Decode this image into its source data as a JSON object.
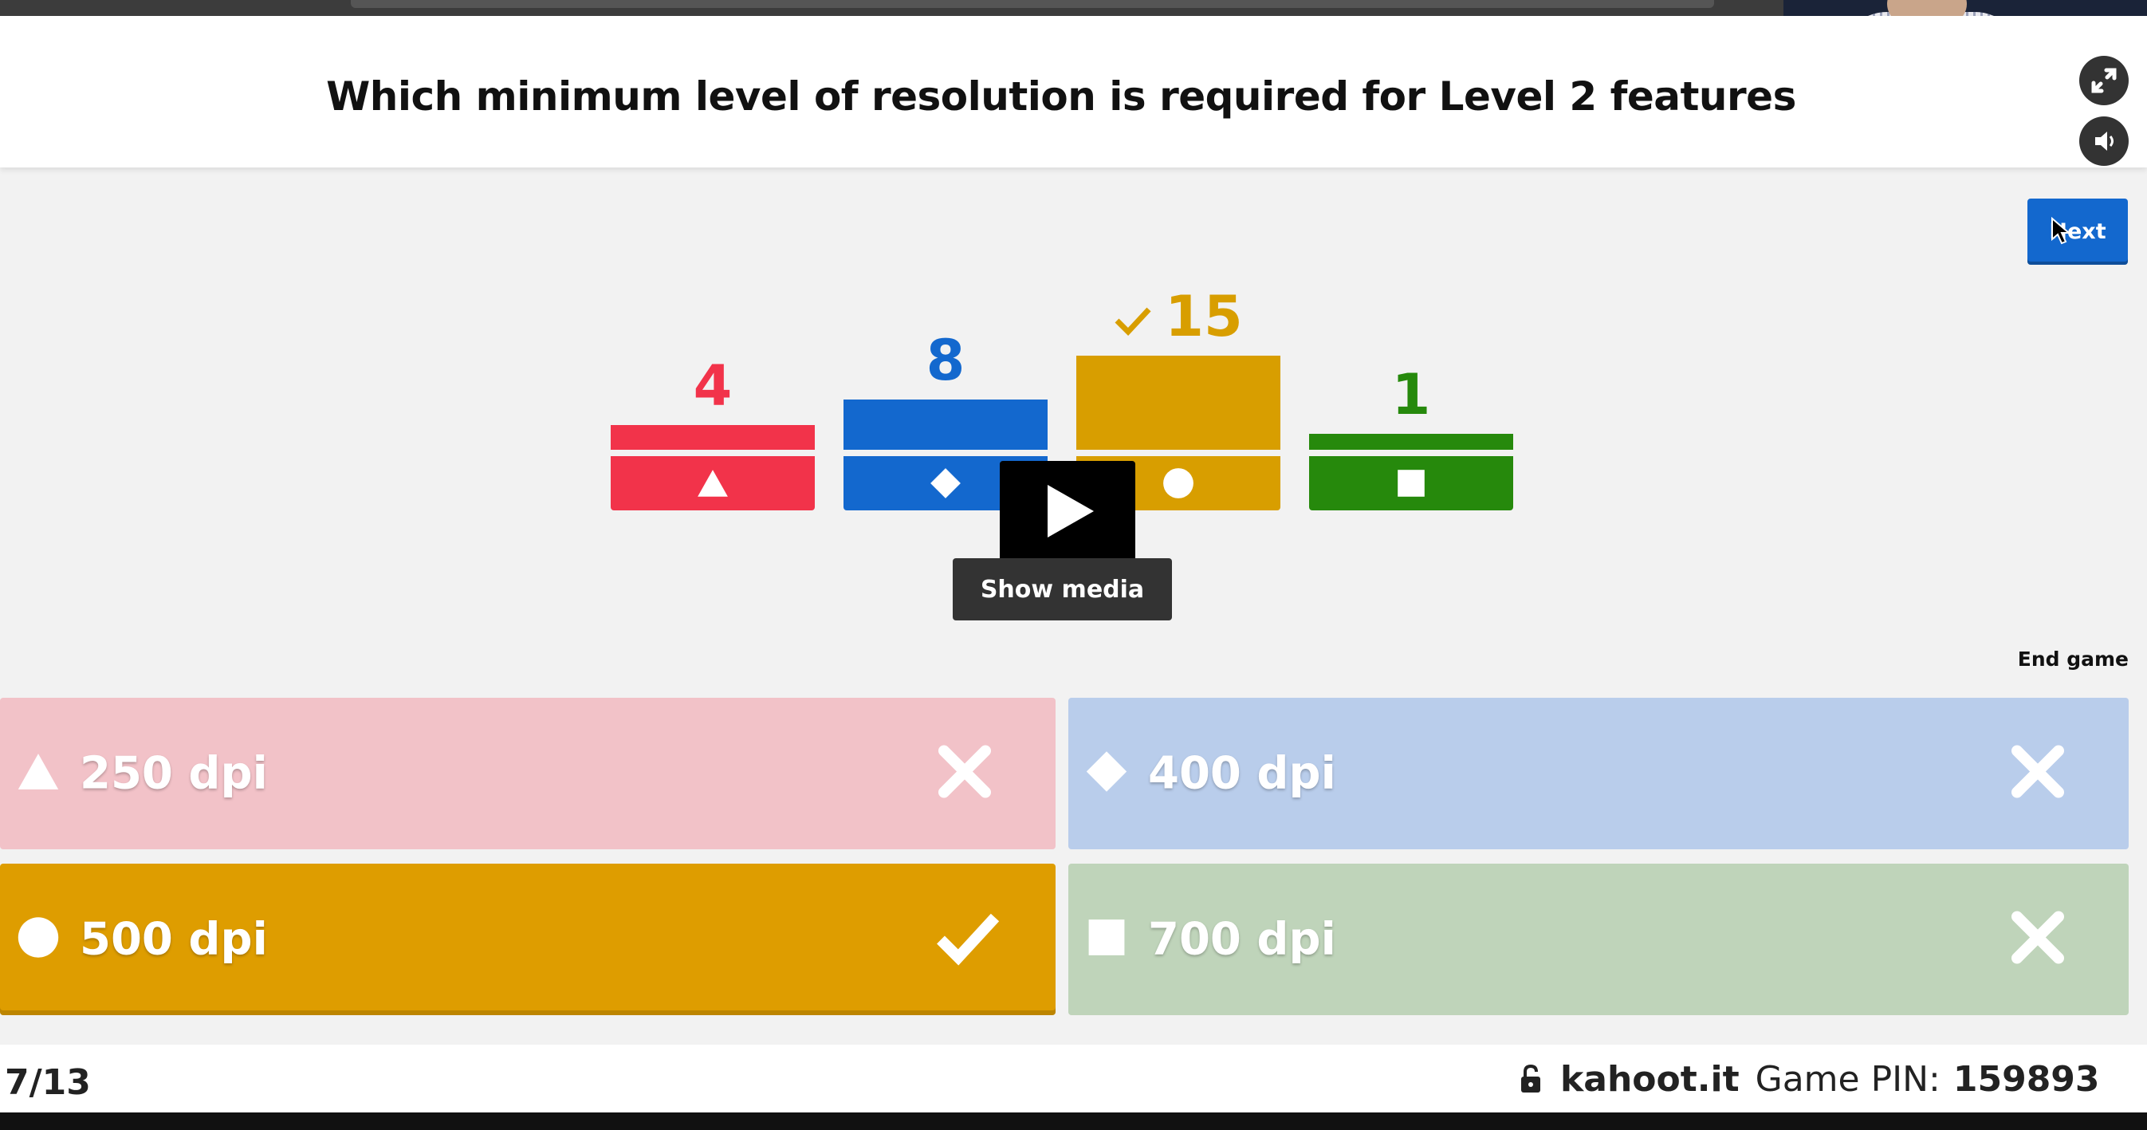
{
  "question": "Which minimum level of resolution is required for Level 2 features",
  "controls": {
    "next_label": "Next",
    "show_media_label": "Show media",
    "end_game_label": "End game"
  },
  "results": [
    {
      "count": "4",
      "value": 4,
      "shape": "triangle",
      "color": "#f2334a",
      "correct": false
    },
    {
      "count": "8",
      "value": 8,
      "shape": "diamond",
      "color": "#1368ce",
      "correct": false
    },
    {
      "count": "15",
      "value": 15,
      "shape": "circle",
      "color": "#d89e00",
      "correct": true
    },
    {
      "count": "1",
      "value": 1,
      "shape": "square",
      "color": "#26890c",
      "correct": false
    }
  ],
  "answers": [
    {
      "shape": "triangle",
      "label": "250 dpi",
      "color": "#f2c2c8",
      "correct": false
    },
    {
      "shape": "diamond",
      "label": "400 dpi",
      "color": "#b9cdeb",
      "correct": false
    },
    {
      "shape": "circle",
      "label": "500 dpi",
      "color": "#de9d00",
      "correct": true
    },
    {
      "shape": "square",
      "label": "700 dpi",
      "color": "#bfd4ba",
      "correct": false
    }
  ],
  "footer": {
    "progress": "7/13",
    "site": "kahoot.it",
    "pin_label": "Game PIN:",
    "pin": "159893"
  },
  "icons": {
    "fullscreen": "fullscreen-icon",
    "sound": "speaker-icon",
    "lock": "lock-icon",
    "play": "play-icon"
  }
}
